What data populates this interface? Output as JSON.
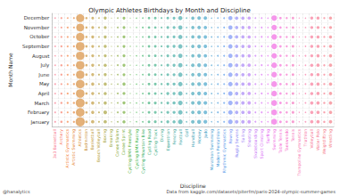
{
  "chart_data": {
    "type": "scatter",
    "title": "Olympic Athletes Birthdays by Month and Discipline",
    "x_label": "Discipline",
    "y_label": "Month Name",
    "annotations": [
      "@hanalytics",
      "Data from kaggle.com/datasets/piterfm/paris-2024-olympic-summer-games"
    ],
    "grid": true,
    "marker": "circle",
    "categories": [
      "3x3 Basketball",
      "Archery",
      "Artistic Gymnastics",
      "Artistic Swimming",
      "Athletics",
      "Badminton",
      "Basketball",
      "Beach Volleyball",
      "Boxing",
      "Breaking",
      "Canoe Slalom",
      "Canoe Sprint",
      "Cycling BMX Freestyle",
      "Cycling BMX Racing",
      "Cycling Mountain Bike",
      "Cycling Road",
      "Cycling Track",
      "Diving",
      "Equestrian",
      "Fencing",
      "Football",
      "Golf",
      "Handball",
      "Hockey",
      "Judo",
      "Marathon Swimming",
      "Modern Pentathlon",
      "Rhythmic Gymnastics",
      "Rowing",
      "Rugby Sevens",
      "Sailing",
      "Shooting",
      "Skateboarding",
      "Sport Climbing",
      "Surfing",
      "Swimming",
      "Table Tennis",
      "Taekwondo",
      "Tennis",
      "Trampoline Gymnastics",
      "Triathlon",
      "Volleyball",
      "Water Polo",
      "Weightlifting",
      "Wrestling"
    ],
    "months": [
      "January",
      "February",
      "March",
      "April",
      "May",
      "June",
      "July",
      "August",
      "September",
      "October",
      "November",
      "December"
    ],
    "colors": [
      "#f77189",
      "#f6745f",
      "#f37932",
      "#e48132",
      "#d58731",
      "#c88d31",
      "#bb9331",
      "#ae9831",
      "#a19b31",
      "#939f31",
      "#83a331",
      "#6fa731",
      "#50ab31",
      "#32b03e",
      "#33ad5f",
      "#34ab72",
      "#35a980",
      "#35a78b",
      "#36a694",
      "#36a49c",
      "#37a3a4",
      "#38a1ab",
      "#39a0b3",
      "#3a9ebb",
      "#3b9cc4",
      "#3d9ace",
      "#3f97da",
      "#4f93e8",
      "#6e8cf4",
      "#8b85f4",
      "#a17ef4",
      "#b476f4",
      "#c56df4",
      "#d664f4",
      "#e45bf0",
      "#ef5fe1",
      "#f463d3",
      "#f566c6",
      "#f569b9",
      "#f66cac",
      "#f66e9f",
      "#f67092",
      "#f5708a",
      "#f47284",
      "#f3737e"
    ],
    "counts": [
      [
        8,
        6,
        7,
        6,
        7,
        5,
        6,
        5,
        6,
        5,
        4,
        5
      ],
      [
        12,
        10,
        11,
        10,
        9,
        10,
        11,
        9,
        10,
        9,
        8,
        9
      ],
      [
        9,
        8,
        10,
        9,
        8,
        7,
        8,
        9,
        7,
        8,
        7,
        6
      ],
      [
        10,
        12,
        11,
        9,
        10,
        8,
        9,
        9,
        10,
        8,
        7,
        8
      ],
      [
        190,
        170,
        180,
        165,
        170,
        160,
        165,
        160,
        170,
        155,
        140,
        145
      ],
      [
        15,
        14,
        16,
        13,
        12,
        14,
        13,
        12,
        13,
        12,
        11,
        12
      ],
      [
        25,
        22,
        24,
        21,
        22,
        20,
        21,
        20,
        19,
        20,
        18,
        17
      ],
      [
        8,
        9,
        8,
        7,
        8,
        9,
        7,
        8,
        7,
        6,
        7,
        6
      ],
      [
        25,
        30,
        24,
        22,
        23,
        21,
        22,
        20,
        22,
        21,
        19,
        20
      ],
      [
        3,
        2,
        3,
        2,
        3,
        3,
        2,
        3,
        2,
        3,
        2,
        2
      ],
      [
        6,
        7,
        6,
        7,
        5,
        6,
        7,
        6,
        5,
        6,
        6,
        5
      ],
      [
        22,
        20,
        21,
        19,
        22,
        18,
        20,
        19,
        18,
        19,
        17,
        18
      ],
      [
        2,
        2,
        3,
        2,
        2,
        3,
        2,
        2,
        3,
        2,
        2,
        2
      ],
      [
        4,
        3,
        4,
        3,
        4,
        3,
        3,
        4,
        3,
        3,
        3,
        4
      ],
      [
        6,
        5,
        6,
        6,
        5,
        6,
        5,
        6,
        5,
        5,
        6,
        5
      ],
      [
        16,
        15,
        17,
        14,
        15,
        14,
        15,
        13,
        14,
        13,
        14,
        13
      ],
      [
        18,
        17,
        19,
        16,
        17,
        16,
        17,
        15,
        16,
        15,
        14,
        16
      ],
      [
        10,
        9,
        10,
        8,
        10,
        9,
        8,
        9,
        8,
        9,
        8,
        8
      ],
      [
        20,
        19,
        18,
        20,
        19,
        17,
        18,
        17,
        19,
        16,
        17,
        16
      ],
      [
        22,
        21,
        22,
        20,
        21,
        19,
        20,
        19,
        20,
        18,
        19,
        18
      ],
      [
        48,
        46,
        47,
        44,
        45,
        42,
        43,
        41,
        42,
        40,
        39,
        38
      ],
      [
        5,
        6,
        5,
        6,
        5,
        5,
        6,
        5,
        5,
        6,
        5,
        5
      ],
      [
        30,
        28,
        29,
        27,
        28,
        26,
        27,
        25,
        26,
        25,
        24,
        25
      ],
      [
        36,
        34,
        35,
        33,
        34,
        32,
        33,
        31,
        32,
        30,
        29,
        30
      ],
      [
        32,
        30,
        31,
        29,
        30,
        28,
        29,
        27,
        28,
        27,
        26,
        27
      ],
      [
        4,
        5,
        4,
        5,
        4,
        4,
        5,
        4,
        4,
        5,
        4,
        4
      ],
      [
        6,
        7,
        6,
        5,
        6,
        6,
        5,
        6,
        5,
        6,
        5,
        5
      ],
      [
        8,
        8,
        9,
        7,
        8,
        7,
        8,
        7,
        8,
        7,
        7,
        7
      ],
      [
        48,
        46,
        47,
        45,
        46,
        43,
        44,
        42,
        43,
        41,
        40,
        40
      ],
      [
        30,
        28,
        29,
        27,
        28,
        26,
        27,
        25,
        26,
        25,
        24,
        25
      ],
      [
        28,
        27,
        28,
        26,
        27,
        25,
        26,
        24,
        25,
        24,
        23,
        24
      ],
      [
        28,
        26,
        27,
        25,
        26,
        24,
        25,
        24,
        25,
        23,
        22,
        23
      ],
      [
        7,
        6,
        7,
        6,
        7,
        6,
        6,
        7,
        6,
        6,
        5,
        6
      ],
      [
        6,
        7,
        6,
        7,
        6,
        6,
        7,
        6,
        6,
        7,
        6,
        6
      ],
      [
        4,
        5,
        4,
        5,
        4,
        4,
        5,
        4,
        4,
        5,
        4,
        4
      ],
      [
        80,
        78,
        79,
        75,
        76,
        72,
        73,
        70,
        72,
        69,
        66,
        68
      ],
      [
        15,
        14,
        15,
        13,
        14,
        13,
        14,
        12,
        13,
        12,
        12,
        13
      ],
      [
        12,
        11,
        12,
        10,
        11,
        10,
        11,
        10,
        10,
        10,
        9,
        10
      ],
      [
        17,
        16,
        17,
        15,
        16,
        15,
        16,
        14,
        15,
        14,
        13,
        14
      ],
      [
        3,
        3,
        2,
        3,
        3,
        2,
        3,
        3,
        2,
        3,
        2,
        3
      ],
      [
        6,
        5,
        6,
        5,
        6,
        5,
        5,
        6,
        5,
        5,
        5,
        4
      ],
      [
        25,
        24,
        25,
        23,
        24,
        22,
        23,
        21,
        22,
        21,
        20,
        21
      ],
      [
        26,
        25,
        26,
        24,
        25,
        23,
        24,
        22,
        23,
        22,
        21,
        22
      ],
      [
        11,
        10,
        11,
        9,
        10,
        9,
        10,
        9,
        9,
        9,
        8,
        9
      ],
      [
        26,
        25,
        26,
        24,
        25,
        23,
        24,
        22,
        23,
        22,
        21,
        22
      ]
    ]
  }
}
